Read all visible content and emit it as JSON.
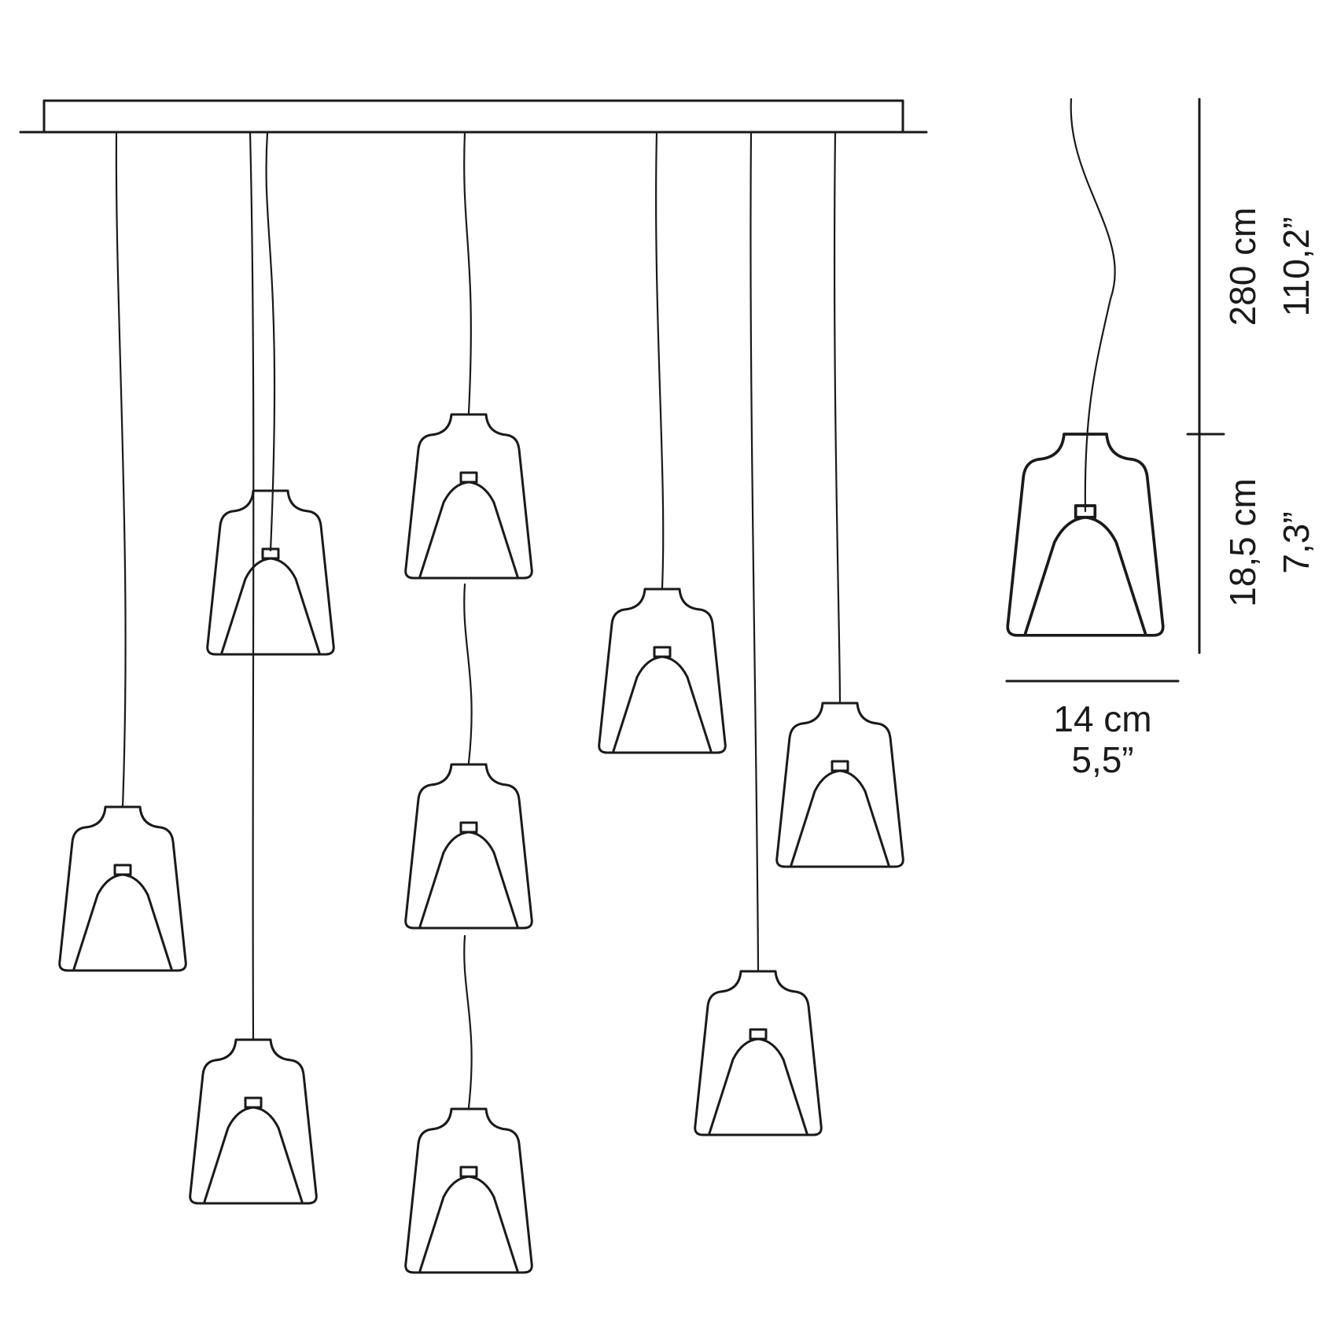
{
  "dimensions": {
    "cable_length": {
      "metric": "280 cm",
      "imperial": "110,2”"
    },
    "shade_height": {
      "metric": "18,5 cm",
      "imperial": "7,3”"
    },
    "shade_width": {
      "metric": "14 cm",
      "imperial": "5,5”"
    }
  },
  "pendant_count": 10
}
